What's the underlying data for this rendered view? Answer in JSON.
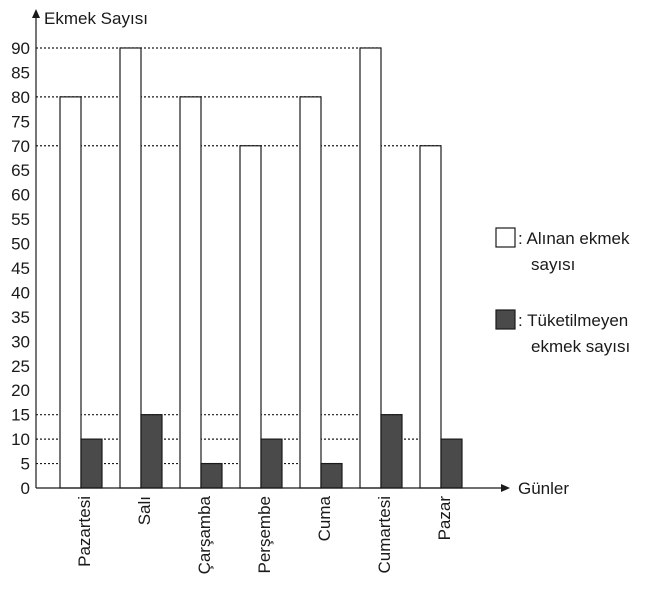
{
  "chart_data": {
    "type": "bar",
    "ylabel": "Ekmek Sayısı",
    "xlabel": "Günler",
    "ylim": [
      0,
      90
    ],
    "yticks": [
      0,
      5,
      10,
      15,
      20,
      25,
      30,
      35,
      40,
      45,
      50,
      55,
      60,
      65,
      70,
      75,
      80,
      85,
      90
    ],
    "categories": [
      "Pazartesi",
      "Salı",
      "Çarşamba",
      "Perşembe",
      "Cuma",
      "Cumartesi",
      "Pazar"
    ],
    "series": [
      {
        "name": "Alınan ekmek sayısı",
        "color": "#ffffff",
        "values": [
          80,
          90,
          80,
          70,
          80,
          90,
          70
        ]
      },
      {
        "name": "Tüketilmeyen ekmek sayısı",
        "color": "#4a4a4a",
        "values": [
          10,
          15,
          5,
          10,
          5,
          15,
          10
        ]
      }
    ],
    "guide_lines": [
      90,
      80,
      70,
      15,
      10,
      5
    ],
    "legend": {
      "placement": "right",
      "entries": [
        {
          "lines": [
            ": Alınan ekmek",
            "sayısı"
          ]
        },
        {
          "lines": [
            ": Tüketilmeyen",
            "ekmek sayısı"
          ]
        }
      ]
    }
  }
}
